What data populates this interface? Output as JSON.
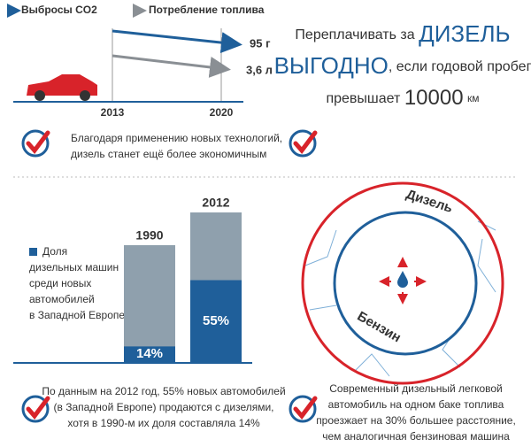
{
  "legend": [
    "Выбросы CO2",
    "Потребление топлива"
  ],
  "trend": {
    "years": [
      "2013",
      "2020"
    ],
    "end_labels": [
      "95 г",
      "3,6 л"
    ]
  },
  "headline": {
    "line1": "Переплачивать за",
    "highlight1": "дизель",
    "highlight2": "выгодно",
    "line2": ", если годовой пробег",
    "line3": "превышает",
    "number": "10000",
    "unit": "км"
  },
  "notes": [
    [
      "Благодаря применению новых технологий,",
      "дизель станет ещё более экономичным"
    ],
    [],
    [
      "По данным на 2012 год, 55% новых автомобилей",
      "(в Западной Европе) продаются с дизелями,",
      "хотя в 1990-м их доля составляла 14%"
    ],
    [
      "Современный дизельный легковой",
      "автомобиль на одном баке топлива",
      "проезжает на 30% большее расстояние,",
      "чем аналогичная бензиновая машина"
    ]
  ],
  "share_chart": {
    "legend": [
      "Доля",
      "дизельных машин",
      "среди новых",
      "автомобилей",
      "в Западной Европе"
    ],
    "bars": [
      {
        "year": "1990",
        "value": 14,
        "label": "14%"
      },
      {
        "year": "2012",
        "value": 55,
        "label": "55%"
      }
    ]
  },
  "circle_labels": [
    "Дизель",
    "Бензин"
  ]
}
